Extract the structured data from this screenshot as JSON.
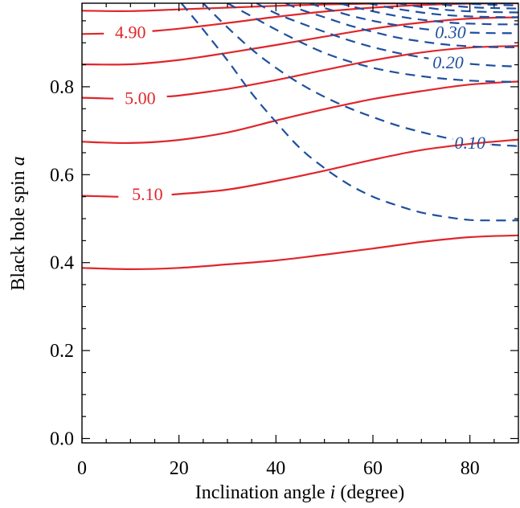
{
  "chart_data": {
    "type": "line",
    "title": "",
    "xlabel": "Inclination angle ",
    "xlabel_var": "i",
    "xlabel_unit": " (degree)",
    "ylabel": "Black hole spin ",
    "ylabel_var": "a",
    "xlim": [
      0,
      90
    ],
    "ylim": [
      -0.01,
      0.99
    ],
    "x_ticks": [
      0,
      20,
      40,
      60,
      80
    ],
    "x_tick_labels": [
      "0",
      "20",
      "40",
      "60",
      "80"
    ],
    "y_ticks": [
      0.0,
      0.2,
      0.4,
      0.6,
      0.8
    ],
    "y_tick_labels": [
      "0.0",
      "0.2",
      "0.4",
      "0.6",
      "0.8"
    ],
    "grid": false,
    "colors": {
      "solid": "#e0262b",
      "dashed": "#1f4f9e"
    },
    "solid_contours": [
      {
        "points": [
          [
            0,
            0.388
          ],
          [
            10,
            0.385
          ],
          [
            20,
            0.388
          ],
          [
            30,
            0.396
          ],
          [
            40,
            0.405
          ],
          [
            50,
            0.418
          ],
          [
            60,
            0.432
          ],
          [
            70,
            0.447
          ],
          [
            80,
            0.458
          ],
          [
            90,
            0.462
          ]
        ]
      },
      {
        "label": "5.10",
        "label_at": [
          13.5,
          0.557
        ],
        "gap": [
          7.5,
          18.5
        ],
        "points": [
          [
            0,
            0.552
          ],
          [
            10,
            0.549
          ],
          [
            20,
            0.556
          ],
          [
            30,
            0.566
          ],
          [
            40,
            0.586
          ],
          [
            50,
            0.609
          ],
          [
            60,
            0.634
          ],
          [
            70,
            0.656
          ],
          [
            80,
            0.67
          ],
          [
            90,
            0.68
          ]
        ]
      },
      {
        "points": [
          [
            0,
            0.675
          ],
          [
            10,
            0.672
          ],
          [
            20,
            0.679
          ],
          [
            30,
            0.696
          ],
          [
            40,
            0.723
          ],
          [
            50,
            0.749
          ],
          [
            60,
            0.772
          ],
          [
            70,
            0.79
          ],
          [
            80,
            0.805
          ],
          [
            90,
            0.812
          ]
        ]
      },
      {
        "label": "5.00",
        "label_at": [
          12,
          0.775
        ],
        "gap": [
          6.5,
          17.5
        ],
        "points": [
          [
            0,
            0.775
          ],
          [
            10,
            0.772
          ],
          [
            20,
            0.78
          ],
          [
            30,
            0.795
          ],
          [
            40,
            0.815
          ],
          [
            50,
            0.838
          ],
          [
            60,
            0.86
          ],
          [
            70,
            0.878
          ],
          [
            80,
            0.889
          ],
          [
            90,
            0.893
          ]
        ]
      },
      {
        "points": [
          [
            0,
            0.851
          ],
          [
            10,
            0.851
          ],
          [
            20,
            0.861
          ],
          [
            30,
            0.877
          ],
          [
            40,
            0.895
          ],
          [
            50,
            0.914
          ],
          [
            60,
            0.932
          ],
          [
            70,
            0.946
          ],
          [
            80,
            0.955
          ],
          [
            90,
            0.958
          ]
        ]
      },
      {
        "label": "4.90",
        "label_at": [
          10,
          0.925
        ],
        "gap": [
          4.5,
          14.5
        ],
        "points": [
          [
            0,
            0.92
          ],
          [
            10,
            0.922
          ],
          [
            20,
            0.932
          ],
          [
            30,
            0.945
          ],
          [
            40,
            0.959
          ],
          [
            50,
            0.971
          ],
          [
            60,
            0.98
          ],
          [
            70,
            0.986
          ],
          [
            80,
            0.989
          ],
          [
            90,
            0.99
          ]
        ]
      },
      {
        "points": [
          [
            0,
            0.973
          ],
          [
            10,
            0.972
          ],
          [
            20,
            0.976
          ],
          [
            30,
            0.98
          ],
          [
            40,
            0.984
          ],
          [
            50,
            0.987
          ],
          [
            60,
            0.989
          ],
          [
            70,
            0.99
          ],
          [
            80,
            0.99
          ],
          [
            90,
            0.99
          ]
        ]
      }
    ],
    "dashed_contours": [
      {
        "points": [
          [
            20.5,
            0.99
          ],
          [
            25,
            0.93
          ],
          [
            30,
            0.86
          ],
          [
            35,
            0.785
          ],
          [
            40,
            0.72
          ],
          [
            45,
            0.66
          ],
          [
            50,
            0.615
          ],
          [
            55,
            0.578
          ],
          [
            60,
            0.55
          ],
          [
            65,
            0.53
          ],
          [
            70,
            0.514
          ],
          [
            75,
            0.504
          ],
          [
            80,
            0.497
          ],
          [
            85,
            0.496
          ],
          [
            90,
            0.496
          ]
        ]
      },
      {
        "label": "0.10",
        "label_at": [
          80,
          0.674
        ],
        "gap": [
          76.5,
          84.5
        ],
        "points": [
          [
            25,
            0.99
          ],
          [
            30,
            0.935
          ],
          [
            35,
            0.885
          ],
          [
            40,
            0.843
          ],
          [
            45,
            0.807
          ],
          [
            50,
            0.777
          ],
          [
            55,
            0.752
          ],
          [
            60,
            0.731
          ],
          [
            65,
            0.712
          ],
          [
            70,
            0.697
          ],
          [
            75,
            0.684
          ],
          [
            80,
            0.675
          ],
          [
            85,
            0.668
          ],
          [
            90,
            0.665
          ]
        ]
      },
      {
        "points": [
          [
            30,
            0.99
          ],
          [
            35,
            0.96
          ],
          [
            40,
            0.93
          ],
          [
            45,
            0.902
          ],
          [
            50,
            0.877
          ],
          [
            55,
            0.858
          ],
          [
            60,
            0.843
          ],
          [
            65,
            0.832
          ],
          [
            70,
            0.824
          ],
          [
            75,
            0.818
          ],
          [
            80,
            0.814
          ],
          [
            85,
            0.812
          ],
          [
            90,
            0.811
          ]
        ]
      },
      {
        "label": "0.20",
        "label_at": [
          75.5,
          0.857
        ],
        "gap": [
          71.5,
          80
        ],
        "points": [
          [
            36,
            0.99
          ],
          [
            40,
            0.967
          ],
          [
            45,
            0.945
          ],
          [
            50,
            0.925
          ],
          [
            55,
            0.906
          ],
          [
            60,
            0.89
          ],
          [
            65,
            0.877
          ],
          [
            70,
            0.867
          ],
          [
            75,
            0.858
          ],
          [
            80,
            0.852
          ],
          [
            85,
            0.848
          ],
          [
            90,
            0.846
          ]
        ]
      },
      {
        "points": [
          [
            42,
            0.99
          ],
          [
            45,
            0.976
          ],
          [
            50,
            0.958
          ],
          [
            55,
            0.94
          ],
          [
            60,
            0.925
          ],
          [
            65,
            0.912
          ],
          [
            70,
            0.903
          ],
          [
            75,
            0.896
          ],
          [
            80,
            0.892
          ],
          [
            85,
            0.89
          ],
          [
            90,
            0.89
          ]
        ]
      },
      {
        "label": "0.30",
        "label_at": [
          76,
          0.925
        ],
        "gap": [
          72,
          80
        ],
        "points": [
          [
            47,
            0.99
          ],
          [
            50,
            0.979
          ],
          [
            55,
            0.963
          ],
          [
            60,
            0.95
          ],
          [
            65,
            0.94
          ],
          [
            70,
            0.932
          ],
          [
            75,
            0.926
          ],
          [
            80,
            0.923
          ],
          [
            85,
            0.922
          ],
          [
            90,
            0.922
          ]
        ]
      },
      {
        "points": [
          [
            53,
            0.99
          ],
          [
            57,
            0.979
          ],
          [
            62,
            0.967
          ],
          [
            67,
            0.957
          ],
          [
            72,
            0.95
          ],
          [
            77,
            0.945
          ],
          [
            82,
            0.943
          ],
          [
            86,
            0.942
          ],
          [
            90,
            0.942
          ]
        ]
      },
      {
        "points": [
          [
            59,
            0.99
          ],
          [
            63,
            0.981
          ],
          [
            68,
            0.972
          ],
          [
            73,
            0.965
          ],
          [
            78,
            0.961
          ],
          [
            83,
            0.959
          ],
          [
            90,
            0.958
          ]
        ]
      },
      {
        "points": [
          [
            65,
            0.99
          ],
          [
            69,
            0.983
          ],
          [
            74,
            0.976
          ],
          [
            79,
            0.972
          ],
          [
            84,
            0.97
          ],
          [
            90,
            0.969
          ]
        ]
      },
      {
        "points": [
          [
            71,
            0.99
          ],
          [
            75,
            0.986
          ],
          [
            80,
            0.981
          ],
          [
            85,
            0.979
          ],
          [
            90,
            0.978
          ]
        ]
      },
      {
        "points": [
          [
            77,
            0.99
          ],
          [
            81,
            0.988
          ],
          [
            86,
            0.986
          ],
          [
            90,
            0.985
          ]
        ]
      },
      {
        "points": [
          [
            83,
            0.99
          ],
          [
            87,
            0.99
          ],
          [
            90,
            0.99
          ]
        ]
      }
    ]
  }
}
